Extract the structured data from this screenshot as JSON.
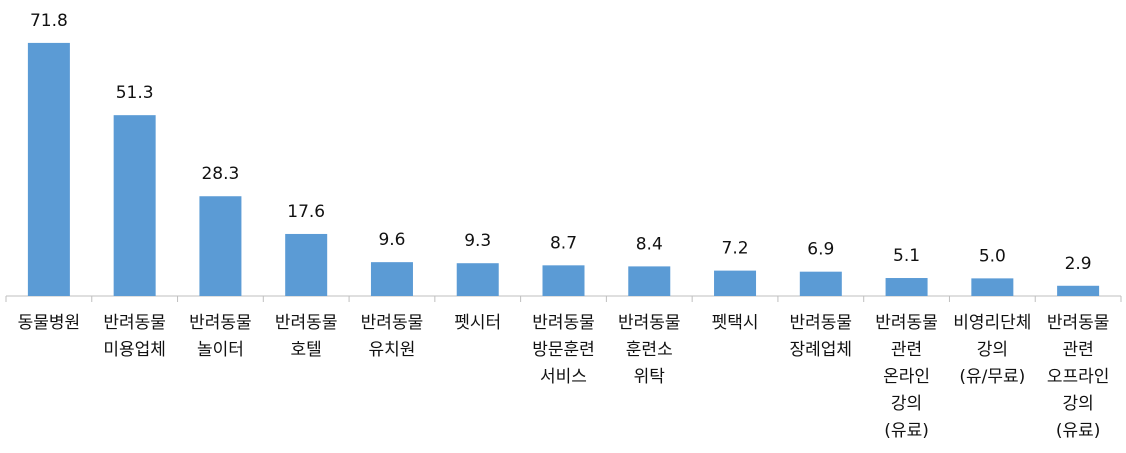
{
  "chart_data": {
    "type": "bar",
    "categories": [
      [
        "동물병원"
      ],
      [
        "반려동물",
        "미용업체"
      ],
      [
        "반려동물",
        "놀이터"
      ],
      [
        "반려동물",
        "호텔"
      ],
      [
        "반려동물",
        "유치원"
      ],
      [
        "펫시터"
      ],
      [
        "반려동물",
        "방문훈련",
        "서비스"
      ],
      [
        "반려동물",
        "훈련소",
        "위탁"
      ],
      [
        "펫택시"
      ],
      [
        "반려동물",
        "장례업체"
      ],
      [
        "반려동물",
        "관련",
        "온라인",
        "강의",
        "(유료)"
      ],
      [
        "비영리단체",
        "강의",
        "(유/무료)"
      ],
      [
        "반려동물",
        "관련",
        "오프라인",
        "강의",
        "(유료)"
      ]
    ],
    "values": [
      71.8,
      51.3,
      28.3,
      17.6,
      9.6,
      9.3,
      8.7,
      8.4,
      7.2,
      6.9,
      5.1,
      5.0,
      2.9
    ],
    "value_labels": [
      "71.8",
      "51.3",
      "28.3",
      "17.6",
      "9.6",
      "9.3",
      "8.7",
      "8.4",
      "7.2",
      "6.9",
      "5.1",
      "5.0",
      "2.9"
    ],
    "color": "#5b9bd5",
    "ylim": [
      0,
      80
    ]
  }
}
